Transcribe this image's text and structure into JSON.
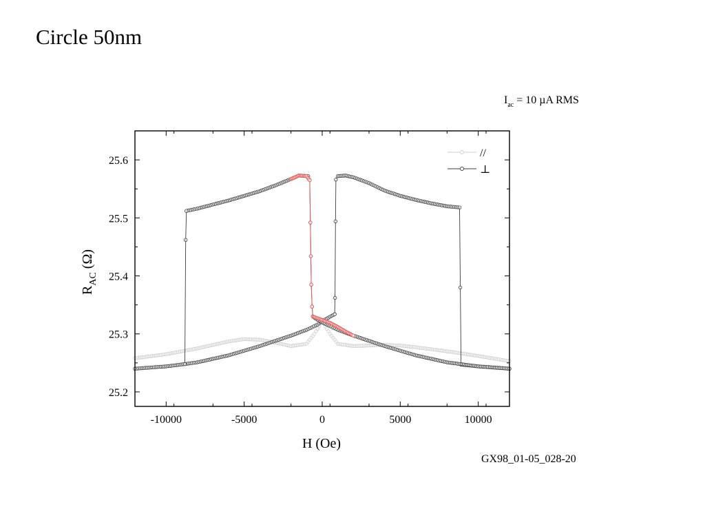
{
  "slide": {
    "title": "Circle 50nm",
    "current_label_main": "I",
    "current_label_sub": "ac",
    "current_label_rest": " = 10 µA RMS",
    "file_id": "GX98_01-05_028-20"
  },
  "colors": {
    "perp": "#3c3c3c",
    "parallel": "#cccccc",
    "highlight": "#e05a5a",
    "axis": "#000000"
  },
  "chart_data": {
    "type": "scatter",
    "title": "",
    "xlabel": "H (Oe)",
    "ylabel_main": "R",
    "ylabel_sub": "AC",
    "ylabel_rest": " (Ω)",
    "xlim": [
      -12000,
      12000
    ],
    "ylim": [
      25.175,
      25.65
    ],
    "xticks": [
      -10000,
      -5000,
      0,
      5000,
      10000
    ],
    "xtick_labels": [
      "-10000",
      "-5000",
      "0",
      "5000",
      "10000"
    ],
    "yticks": [
      25.2,
      25.3,
      25.4,
      25.5,
      25.6
    ],
    "ytick_labels": [
      "25.2",
      "25.3",
      "25.4",
      "25.5",
      "25.6"
    ],
    "grid": false,
    "legend_position": "top-right",
    "series": [
      {
        "key": "parallel",
        "name": "//",
        "x": [
          -12000,
          -10000,
          -8000,
          -6000,
          -5000,
          -4000,
          -3000,
          -2000,
          -1000,
          -500,
          0,
          500,
          1000,
          2000,
          3000,
          4000,
          5000,
          6000,
          8000,
          10000,
          12000
        ],
        "y": [
          25.258,
          25.265,
          25.275,
          25.287,
          25.291,
          25.29,
          25.285,
          25.279,
          25.283,
          25.3,
          25.322,
          25.3,
          25.283,
          25.279,
          25.28,
          25.281,
          25.28,
          25.277,
          25.27,
          25.262,
          25.253
        ]
      },
      {
        "key": "perp",
        "name": "⊥",
        "branches": [
          {
            "x": [
              -12000,
              -10000,
              -8800,
              -8000,
              -6000,
              -4000,
              -2000,
              -1000,
              -300,
              0,
              400,
              800
            ],
            "y": [
              25.24,
              25.244,
              25.248,
              25.251,
              25.263,
              25.279,
              25.297,
              25.307,
              25.316,
              25.322,
              25.328,
              25.334
            ]
          },
          {
            "x": [
              800,
              820,
              850,
              880,
              1000,
              1500,
              2000,
              3000,
              4000,
              5000,
              6000,
              7000,
              8000,
              8800,
              8850,
              8900
            ],
            "y": [
              25.334,
              25.362,
              25.494,
              25.566,
              25.572,
              25.573,
              25.57,
              25.56,
              25.547,
              25.538,
              25.531,
              25.525,
              25.52,
              25.518,
              25.38,
              25.247
            ]
          },
          {
            "x": [
              8900,
              10000,
              12000
            ],
            "y": [
              25.247,
              25.244,
              25.24
            ]
          },
          {
            "x": [
              12000,
              10000,
              8000,
              6000,
              4000,
              2000,
              1000,
              300,
              0,
              -400,
              -600
            ],
            "y": [
              25.24,
              25.244,
              25.251,
              25.263,
              25.279,
              25.297,
              25.307,
              25.316,
              25.32,
              25.326,
              25.33
            ]
          },
          {
            "x": [
              -600,
              -650,
              -700,
              -730,
              -760,
              -800,
              -900,
              -1500,
              -2000,
              -3000,
              -4000,
              -5000,
              -6000,
              -7000,
              -8000,
              -8700,
              -8750,
              -8800
            ],
            "y": [
              25.33,
              25.347,
              25.385,
              25.434,
              25.492,
              25.565,
              25.572,
              25.573,
              25.567,
              25.556,
              25.546,
              25.538,
              25.53,
              25.523,
              25.516,
              25.512,
              25.462,
              25.248
            ]
          }
        ]
      }
    ],
    "highlight_segments": [
      {
        "x": [
          -2000,
          -1500,
          -1000,
          -800,
          -760,
          -730,
          -700,
          -650,
          -600,
          -500,
          0,
          500,
          1000,
          1500,
          2000
        ],
        "y": [
          25.567,
          25.573,
          25.572,
          25.565,
          25.492,
          25.434,
          25.385,
          25.347,
          25.33,
          25.329,
          25.324,
          25.319,
          25.312,
          25.304,
          25.297
        ]
      }
    ]
  }
}
